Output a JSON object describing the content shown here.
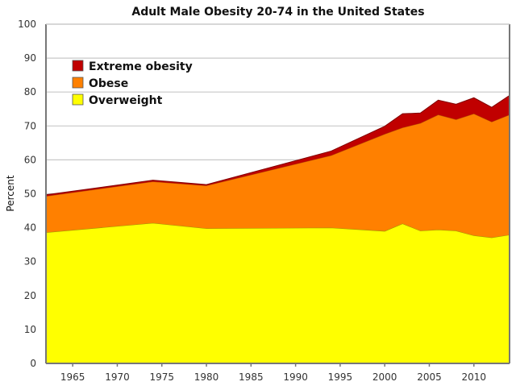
{
  "chart_data": {
    "type": "area",
    "stacked": true,
    "title": "Adult Male Obesity 20-74 in the United States",
    "xlabel": "",
    "ylabel": "Percent",
    "xlim": [
      1962,
      2014
    ],
    "ylim": [
      0,
      100
    ],
    "xticks": [
      1965,
      1970,
      1975,
      1980,
      1985,
      1990,
      1995,
      2000,
      2005,
      2010
    ],
    "xtick_labels": [
      "1965",
      "1970",
      "1975",
      "1980",
      "1985",
      "1990",
      "1995",
      "2000",
      "2005",
      "2010"
    ],
    "yticks": [
      0,
      10,
      20,
      30,
      40,
      50,
      60,
      70,
      80,
      90,
      100
    ],
    "ytick_labels": [
      "0",
      "10",
      "20",
      "30",
      "40",
      "50",
      "60",
      "70",
      "80",
      "90",
      "100"
    ],
    "grid": "horizontal",
    "legend_position": "top-left",
    "x": [
      1962,
      1974,
      1980,
      1994,
      2000,
      2002,
      2004,
      2006,
      2008,
      2010,
      2012,
      2014
    ],
    "series": [
      {
        "name": "Overweight",
        "color": "#ffff00",
        "values": [
          38.6,
          41.4,
          39.8,
          40.0,
          39.0,
          41.2,
          39.1,
          39.4,
          39.1,
          37.7,
          37.1,
          37.9
        ]
      },
      {
        "name": "Obese",
        "color": "#ff8000",
        "values": [
          10.7,
          12.2,
          12.6,
          21.3,
          28.6,
          28.3,
          31.7,
          33.9,
          32.8,
          35.9,
          34.1,
          35.4
        ]
      },
      {
        "name": "Extreme obesity",
        "color": "#c00000",
        "values": [
          0.4,
          0.4,
          0.3,
          1.3,
          2.3,
          4.1,
          3.0,
          4.3,
          4.5,
          4.7,
          4.3,
          5.7
        ]
      }
    ],
    "legend": [
      {
        "label": "Extreme obesity",
        "color": "#c00000"
      },
      {
        "label": "Obese",
        "color": "#ff8000"
      },
      {
        "label": "Overweight",
        "color": "#ffff00"
      }
    ]
  }
}
